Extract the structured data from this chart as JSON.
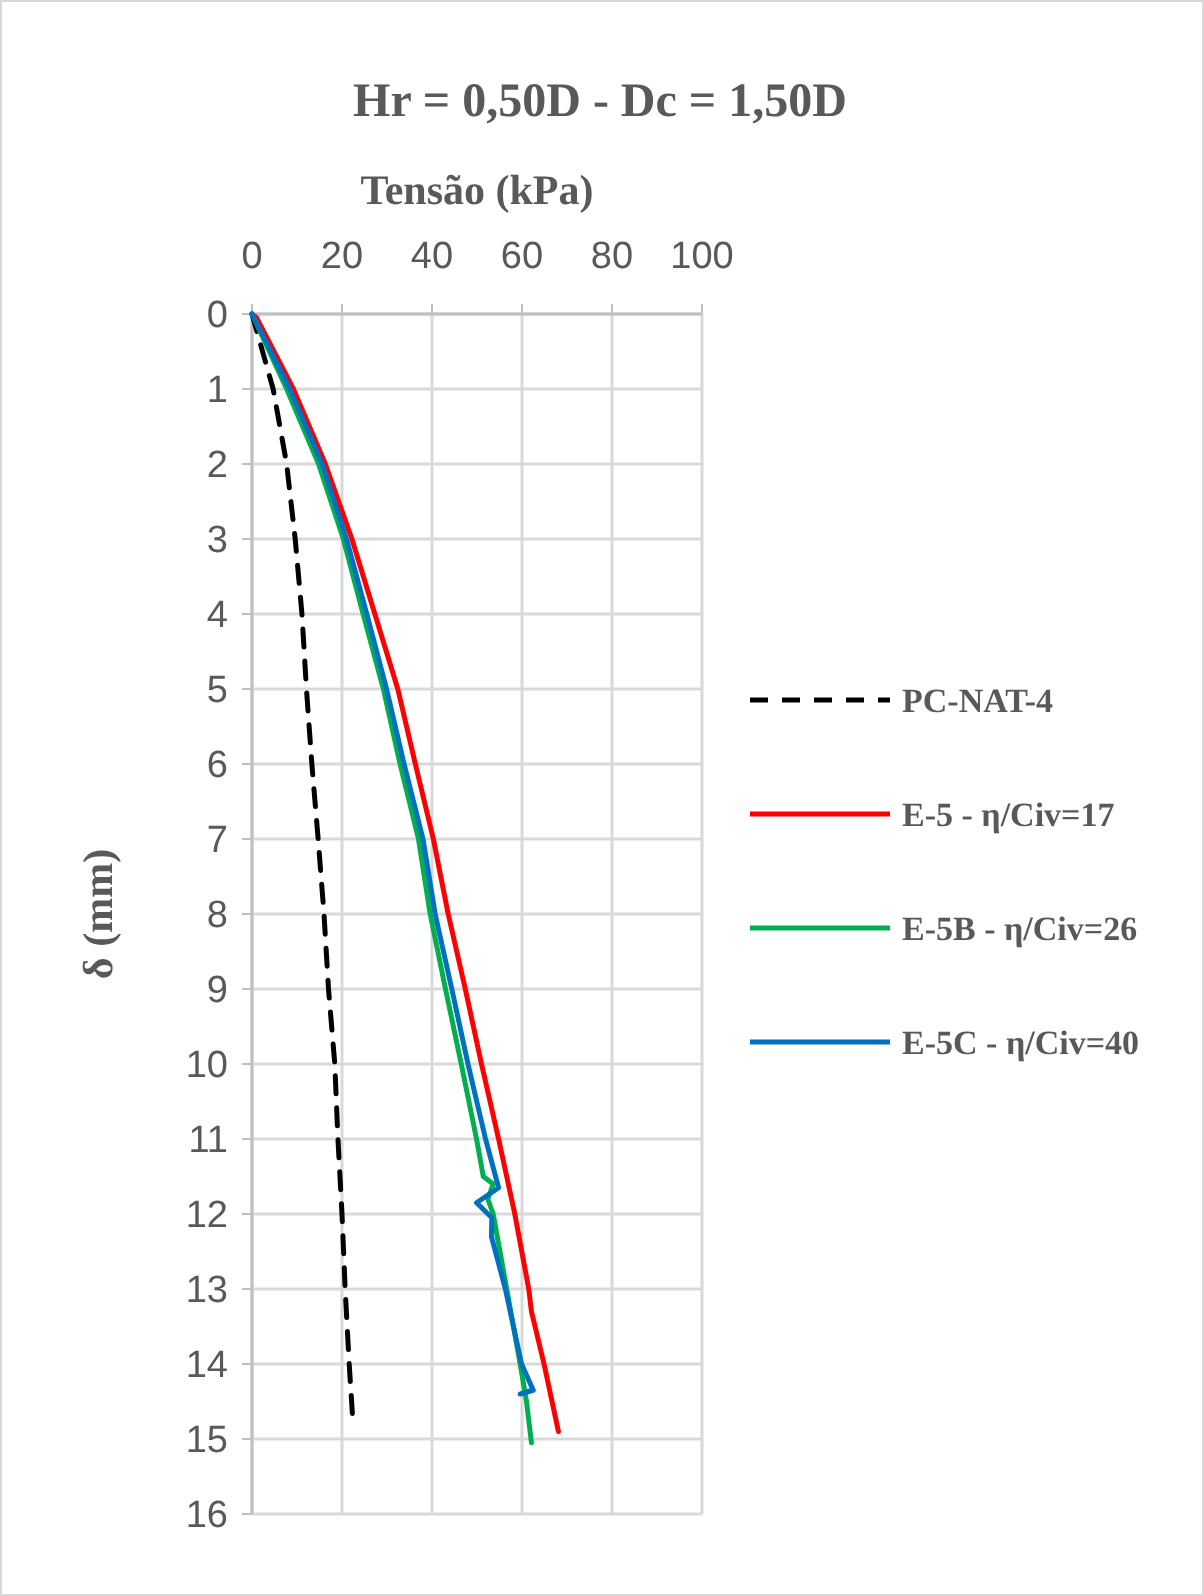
{
  "chart_data": {
    "type": "line",
    "title": "Hr = 0,50D - Dc = 1,50D",
    "xlabel": "Tensão (kPa)",
    "ylabel": "δ (mm)",
    "xlim": [
      0,
      100
    ],
    "xticks": [
      0,
      20,
      40,
      60,
      80,
      100
    ],
    "ylim": [
      16,
      0
    ],
    "yticks": [
      0,
      1,
      2,
      3,
      4,
      5,
      6,
      7,
      8,
      9,
      10,
      11,
      12,
      13,
      14,
      15,
      16
    ],
    "grid": true,
    "legend": "right",
    "marker": "none",
    "series": [
      {
        "name": "PC-NAT-4",
        "color": "#000000",
        "line_style": "dashed",
        "x": [
          0,
          4.7,
          7.7,
          9.6,
          11.1,
          12.1,
          13.3,
          14.7,
          16,
          17,
          18.4,
          19.1,
          20,
          20.7,
          21.6,
          22.4
        ],
        "values": [
          0,
          1,
          2,
          3,
          4,
          5,
          6,
          7,
          8,
          9,
          10,
          11,
          12,
          13,
          14,
          14.75
        ]
      },
      {
        "name": "E-5 - η/Civ=17",
        "color": "#ff0000",
        "line_style": "solid",
        "x": [
          0,
          1,
          9.2,
          16.3,
          22.2,
          27.3,
          32.4,
          36.3,
          40.3,
          43.6,
          47.4,
          51,
          54.8,
          58.4,
          61.5,
          62.1,
          64.9,
          68.1
        ],
        "values": [
          0,
          0.05,
          1,
          2,
          3,
          4,
          5,
          6,
          7,
          8,
          9,
          10,
          11,
          12,
          13,
          13.3,
          14,
          14.9
        ]
      },
      {
        "name": "E-5B - η/Civ=26",
        "color": "#00b050",
        "line_style": "solid",
        "x": [
          0,
          7.7,
          14.8,
          20.3,
          24.7,
          29.2,
          32.9,
          37,
          39.6,
          43,
          46.5,
          49.9,
          51.4,
          53.6,
          52.4,
          53.6,
          56.6,
          59.6,
          61,
          62.1
        ],
        "values": [
          0,
          1,
          2,
          3,
          4,
          5,
          6,
          7,
          8,
          9,
          10,
          11,
          11.5,
          11.6,
          11.8,
          12,
          13,
          14,
          14.5,
          15.05
        ]
      },
      {
        "name": "E-5C - η/Civ=40",
        "color": "#0070c0",
        "line_style": "solid",
        "x": [
          0,
          8.4,
          15.6,
          21,
          25.5,
          29.9,
          33.8,
          38,
          40.7,
          44.4,
          48,
          51.9,
          54.8,
          49.9,
          53.3,
          53.2,
          56.3,
          59.9,
          62.5,
          59.6,
          62.1
        ],
        "values": [
          0,
          1,
          2,
          3,
          4,
          5,
          6,
          7,
          8,
          9,
          10,
          11,
          11.65,
          11.85,
          12.05,
          12.3,
          13,
          14,
          14.35,
          14.4,
          14.35
        ]
      }
    ]
  }
}
